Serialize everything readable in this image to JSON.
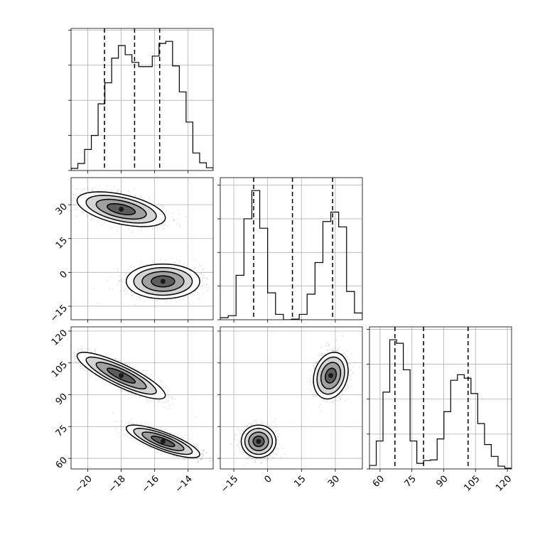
{
  "chart_data": {
    "type": "corner",
    "title": "",
    "grid": true,
    "fill_colors": [
      "#ffffff",
      "#cfcfcf",
      "#9a9a9a",
      "#555555",
      "#1a1a1a"
    ],
    "scatter_color": "#555555",
    "parameters": [
      {
        "range": [
          -21.0,
          -12.5
        ],
        "ticks": [
          -20,
          -18,
          -16,
          -14
        ],
        "tick_labels": [
          "−20",
          "−18",
          "−16",
          "−14"
        ],
        "quantiles": [
          -19.0,
          -17.2,
          -15.7
        ],
        "hist_counts": [
          0.3,
          1.0,
          3.0,
          5.0,
          9.5,
          12.5,
          16.0,
          17.8,
          16.5,
          15.4,
          14.8,
          14.8,
          16.3,
          18.1,
          18.4,
          14.9,
          11.2,
          6.9,
          2.5,
          1.1,
          0.4
        ]
      },
      {
        "range": [
          -21.0,
          42.0
        ],
        "ticks": [
          -15,
          0,
          15,
          30
        ],
        "tick_labels": [
          "−15",
          "0",
          "15",
          "30"
        ],
        "quantiles": [
          -6.2,
          11.0,
          28.8
        ],
        "hist_counts": [
          0.3,
          0.6,
          6.6,
          15.0,
          19.2,
          13.6,
          4.0,
          0.8,
          0.0,
          0.1,
          0.8,
          3.8,
          8.5,
          14.6,
          16.0,
          13.8,
          4.2,
          1.0
        ]
      },
      {
        "range": [
          55.0,
          122.0
        ],
        "ticks": [
          60,
          75,
          90,
          105,
          120
        ],
        "tick_labels": [
          "60",
          "75",
          "90",
          "105",
          "120"
        ],
        "quantiles": [
          67.0,
          80.5,
          101.5
        ],
        "hist_counts": [
          0.5,
          4.0,
          11.0,
          18.5,
          18.0,
          14.2,
          4.0,
          0.8,
          1.2,
          1.3,
          4.3,
          8.2,
          12.7,
          13.5,
          13.0,
          10.8,
          6.5,
          3.5,
          1.8,
          0.4,
          0.1
        ]
      }
    ],
    "modes": [
      {
        "weight": 0.5,
        "mean": [
          -18.0,
          28.0,
          99.0
        ],
        "sd": [
          1.2,
          3.5,
          5.0
        ],
        "corr": [
          [
            1,
            -0.5,
            -0.85
          ],
          [
            -0.5,
            1,
            0.2
          ],
          [
            -0.85,
            0.2,
            1
          ]
        ]
      },
      {
        "weight": 0.5,
        "mean": [
          -15.5,
          -4.0,
          68.0
        ],
        "sd": [
          1.0,
          3.5,
          3.5
        ],
        "corr": [
          [
            1,
            0.0,
            -0.8
          ],
          [
            0.0,
            1,
            0.0
          ],
          [
            -0.8,
            0.0,
            1
          ]
        ]
      }
    ]
  }
}
